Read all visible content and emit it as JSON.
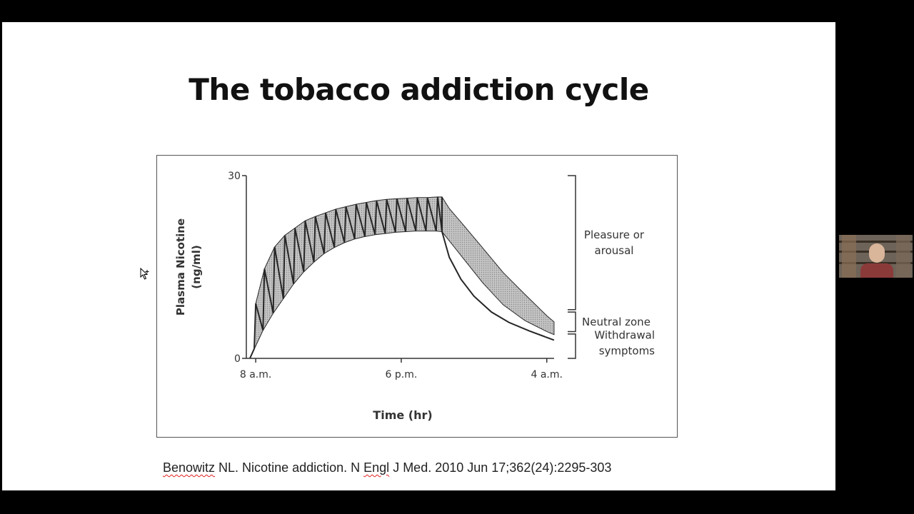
{
  "slide": {
    "title": "The tobacco addiction cycle",
    "citation_parts": {
      "author_surname": "Benowitz",
      "part1": " NL. Nicotine addiction. N ",
      "journal_word": "Engl",
      "part2": " J Med. 2010 Jun 17;362(24):2295-303"
    }
  },
  "chart_data": {
    "type": "line",
    "title": "",
    "xlabel": "Time (hr)",
    "ylabel_line1": "Plasma Nicotine",
    "ylabel_line2": "(ng/ml)",
    "x_unit": "hours since 8 a.m.",
    "xlim": [
      -0.3,
      20.7
    ],
    "ylim": [
      0,
      30
    ],
    "x_ticks": [
      {
        "value": 0,
        "label": "8 a.m."
      },
      {
        "value": 10,
        "label": "6 p.m."
      },
      {
        "value": 20,
        "label": "4 a.m."
      }
    ],
    "y_ticks": [
      {
        "value": 0,
        "label": "0"
      },
      {
        "value": 30,
        "label": "30"
      }
    ],
    "grid": false,
    "legend": "none",
    "smoking_period_end": 12.8,
    "cigarettes": 23,
    "series": [
      {
        "key": "smoking_peaks",
        "points": [
          [
            -0.4,
            0
          ],
          [
            -0.1,
            1.6
          ],
          [
            0.0,
            9.0
          ],
          [
            0.6,
            14.7
          ],
          [
            1.3,
            18.3
          ],
          [
            2.0,
            20.2
          ],
          [
            2.7,
            21.4
          ],
          [
            3.4,
            22.6
          ],
          [
            4.1,
            23.3
          ],
          [
            4.8,
            23.9
          ],
          [
            5.5,
            24.5
          ],
          [
            6.2,
            24.9
          ],
          [
            6.9,
            25.3
          ],
          [
            7.6,
            25.6
          ],
          [
            8.3,
            25.9
          ],
          [
            9.0,
            26.1
          ],
          [
            9.7,
            26.2
          ],
          [
            10.4,
            26.3
          ],
          [
            11.1,
            26.4
          ],
          [
            11.8,
            26.4
          ],
          [
            12.5,
            26.5
          ],
          [
            12.8,
            26.5
          ],
          [
            13.3,
            24.6
          ],
          [
            14.2,
            22.1
          ],
          [
            15.5,
            18.4
          ],
          [
            17.0,
            14.1
          ],
          [
            18.5,
            10.5
          ],
          [
            20.0,
            7.0
          ],
          [
            20.5,
            6.0
          ]
        ]
      },
      {
        "key": "smoking_troughs",
        "points": [
          [
            -0.4,
            0
          ],
          [
            0.5,
            4.6
          ],
          [
            1.2,
            7.4
          ],
          [
            1.9,
            9.8
          ],
          [
            2.6,
            12.2
          ],
          [
            3.3,
            14.2
          ],
          [
            4.0,
            15.8
          ],
          [
            4.7,
            17.2
          ],
          [
            5.4,
            18.2
          ],
          [
            6.1,
            19.0
          ],
          [
            6.8,
            19.6
          ],
          [
            7.5,
            20.0
          ],
          [
            8.2,
            20.3
          ],
          [
            8.9,
            20.5
          ],
          [
            9.6,
            20.7
          ],
          [
            10.3,
            20.8
          ],
          [
            11.0,
            20.9
          ],
          [
            11.7,
            20.9
          ],
          [
            12.4,
            20.9
          ],
          [
            12.8,
            20.8
          ],
          [
            13.3,
            19.3
          ],
          [
            14.3,
            16.3
          ],
          [
            15.6,
            12.4
          ],
          [
            17.0,
            8.8
          ],
          [
            18.5,
            6.2
          ],
          [
            20.0,
            4.4
          ],
          [
            20.5,
            3.9
          ]
        ]
      },
      {
        "key": "decline_after_last_cigarette",
        "points": [
          [
            12.8,
            20.8
          ],
          [
            13.3,
            16.6
          ],
          [
            14.1,
            13.0
          ],
          [
            15.0,
            10.2
          ],
          [
            16.2,
            7.6
          ],
          [
            17.4,
            5.9
          ],
          [
            18.8,
            4.5
          ],
          [
            20.5,
            3.0
          ]
        ]
      }
    ],
    "zones": [
      {
        "label_lines": [
          "Pleasure or",
          "arousal"
        ],
        "y_from": 8.0,
        "y_to": 30
      },
      {
        "label_lines": [
          "Neutral zone"
        ],
        "y_from": 4.4,
        "y_to": 7.6
      },
      {
        "label_lines": [
          "Withdrawal",
          "symptoms"
        ],
        "y_from": 0,
        "y_to": 4.0
      }
    ],
    "colors": {
      "line": "#262626",
      "band_fill": "#b4b4b4",
      "axis": "#333333",
      "text": "#333333"
    }
  }
}
